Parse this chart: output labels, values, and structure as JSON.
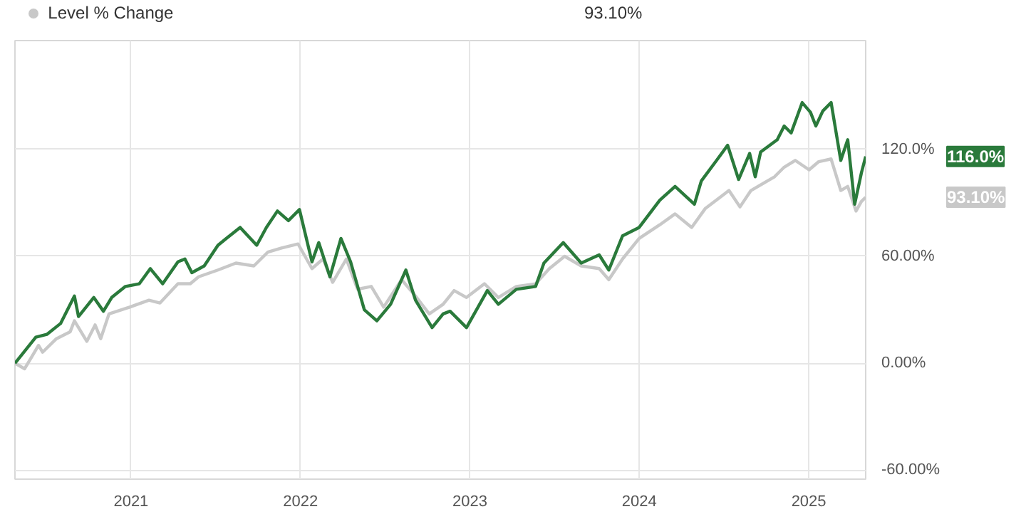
{
  "chart_data": {
    "type": "line",
    "xlim": [
      2020.315,
      2025.336
    ],
    "xticks": [
      2021,
      2022,
      2023,
      2024,
      2025
    ],
    "ylim": [
      -65,
      181
    ],
    "yticks": [
      {
        "value": -60,
        "label": "-60.00%"
      },
      {
        "value": 0,
        "label": "0.00%"
      },
      {
        "value": 60,
        "label": "60.00%"
      },
      {
        "value": 120,
        "label": "120.0%"
      }
    ],
    "grid": true,
    "legend": "top left",
    "line_style": "solid",
    "series": [
      {
        "color": "#2a7a3b",
        "x": [
          2020.315,
          2020.438,
          2020.503,
          2020.584,
          2020.666,
          2020.69,
          2020.78,
          2020.837,
          2020.886,
          2020.967,
          2021.049,
          2021.114,
          2021.187,
          2021.277,
          2021.318,
          2021.359,
          2021.432,
          2021.513,
          2021.562,
          2021.644,
          2021.742,
          2021.799,
          2021.864,
          2021.929,
          2021.994,
          2022.068,
          2022.108,
          2022.174,
          2022.239,
          2022.296,
          2022.377,
          2022.451,
          2022.532,
          2022.622,
          2022.679,
          2022.777,
          2022.842,
          2022.883,
          2022.98,
          2023.103,
          2023.168,
          2023.274,
          2023.388,
          2023.437,
          2023.551,
          2023.657,
          2023.763,
          2023.82,
          2023.901,
          2023.999,
          2024.121,
          2024.211,
          2024.325,
          2024.366,
          2024.456,
          2024.521,
          2024.586,
          2024.651,
          2024.684,
          2024.716,
          2024.814,
          2024.855,
          2024.896,
          2024.961,
          2025.01,
          2025.042,
          2025.083,
          2025.132,
          2025.189,
          2025.23,
          2025.271,
          2025.311,
          2025.336
        ],
        "values": [
          0,
          14.6,
          16.2,
          22.3,
          37.7,
          26.2,
          36.9,
          29.2,
          36.9,
          43.1,
          44.6,
          53.1,
          44.6,
          56.9,
          58.5,
          50.8,
          54.6,
          66.2,
          70.0,
          76.2,
          66.2,
          76.2,
          85.4,
          80.0,
          86.2,
          56.9,
          67.7,
          48.5,
          70.0,
          56.9,
          30.0,
          23.8,
          33.1,
          52.3,
          35.4,
          20.0,
          27.7,
          29.2,
          20.0,
          40.8,
          33.1,
          41.5,
          43.1,
          56.2,
          67.7,
          56.2,
          60.8,
          52.3,
          71.5,
          76.2,
          91.5,
          99.2,
          89.2,
          102.3,
          113.8,
          122.3,
          103.1,
          117.7,
          104.6,
          118.5,
          125.4,
          133.1,
          129.2,
          146.2,
          140.8,
          133.1,
          141.5,
          146.2,
          113.8,
          125.4,
          89.2,
          106.9,
          116.0
        ]
      },
      {
        "name": "Level % Change",
        "color": "#c8c8c8",
        "x": [
          2020.315,
          2020.372,
          2020.454,
          2020.478,
          2020.56,
          2020.641,
          2020.666,
          2020.739,
          2020.788,
          2020.821,
          2020.87,
          2020.992,
          2021.106,
          2021.171,
          2021.277,
          2021.35,
          2021.399,
          2021.513,
          2021.619,
          2021.725,
          2021.807,
          2021.888,
          2021.986,
          2022.068,
          2022.133,
          2022.19,
          2022.271,
          2022.337,
          2022.418,
          2022.491,
          2022.597,
          2022.679,
          2022.76,
          2022.842,
          2022.907,
          2022.98,
          2023.086,
          2023.168,
          2023.274,
          2023.388,
          2023.469,
          2023.559,
          2023.657,
          2023.763,
          2023.82,
          2023.901,
          2023.999,
          2024.121,
          2024.211,
          2024.309,
          2024.39,
          2024.529,
          2024.594,
          2024.659,
          2024.798,
          2024.855,
          2024.92,
          2025.002,
          2025.059,
          2025.132,
          2025.189,
          2025.23,
          2025.279,
          2025.311,
          2025.336
        ],
        "values": [
          0,
          -3.1,
          10.0,
          6.2,
          13.8,
          17.7,
          23.8,
          12.3,
          21.5,
          13.8,
          27.7,
          31.5,
          35.4,
          33.8,
          44.6,
          44.6,
          48.5,
          52.3,
          56.2,
          54.6,
          62.3,
          64.6,
          66.9,
          53.1,
          58.5,
          45.4,
          58.5,
          41.5,
          43.1,
          31.5,
          46.9,
          37.7,
          27.7,
          33.1,
          40.8,
          36.9,
          44.6,
          36.9,
          43.1,
          44.6,
          53.1,
          60.0,
          54.6,
          53.1,
          46.9,
          58.5,
          70.0,
          77.7,
          83.8,
          76.2,
          86.9,
          96.9,
          87.7,
          96.9,
          104.6,
          110.0,
          113.8,
          108.5,
          113.1,
          114.6,
          96.9,
          99.2,
          85.4,
          90.8,
          93.1
        ]
      }
    ],
    "annotations": [
      "116.0%",
      "93.10%",
      "93.10%"
    ]
  }
}
